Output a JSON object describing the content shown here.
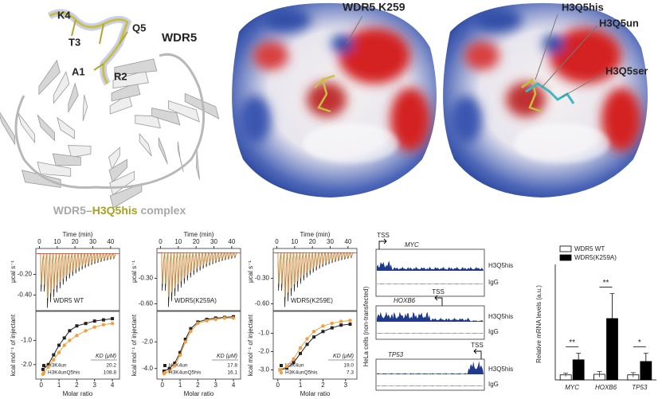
{
  "figure": {
    "structure": {
      "residues": [
        "K4",
        "Q5",
        "T3",
        "A1",
        "R2"
      ],
      "protein": "WDR5",
      "caption": [
        "WDR5–",
        "H3Q5his",
        " complex"
      ]
    },
    "surface_k259": {
      "label": "WDR5 K259"
    },
    "surface_overlay": {
      "labels": [
        "H3Q5his",
        "H3Q5un",
        "H3Q5ser"
      ]
    },
    "tracks": {
      "cell_label": "HeLa cells (non-transfected)",
      "loci": [
        {
          "gene": "MYC",
          "tss": "TSS",
          "rows": [
            "H3Q5his",
            "IgG"
          ]
        },
        {
          "gene": "HOXB6",
          "tss": "TSS",
          "rows": [
            "H3Q5his",
            "IgG"
          ]
        },
        {
          "gene": "TP53",
          "tss": "TSS",
          "rows": [
            "H3Q5his",
            "IgG"
          ]
        }
      ]
    }
  },
  "chart_data": [
    {
      "type": "itc",
      "title": "WDR5 WT",
      "time_label": "Time (min)",
      "time_lim": [
        -2,
        45
      ],
      "time_ticks": [
        0,
        10,
        20,
        30,
        40
      ],
      "raw_label": "μcal s⁻¹",
      "raw_lim": [
        -0.55,
        0.05
      ],
      "raw_ticks": [
        {
          "value": -0.2,
          "label": "-0.20"
        },
        {
          "value": -0.4,
          "label": "-0.40"
        }
      ],
      "xlabel": "Molar ratio",
      "xlim": [
        -0.3,
        4.4
      ],
      "xticks": [
        0,
        1,
        2,
        3,
        4
      ],
      "ylabel": "kcal mol⁻¹ of injectant",
      "ylim": [
        -2.6,
        0.2
      ],
      "yticks": [
        {
          "value": -1,
          "label": "-1.0"
        },
        {
          "value": -2,
          "label": "-2.0"
        }
      ],
      "legend_title": "KD (μM)",
      "series": [
        {
          "name": "H3K4un",
          "color": "#222222",
          "marker": "square",
          "kd": 20.2,
          "x": [
            0.1,
            0.4,
            0.7,
            1.0,
            1.3,
            1.6,
            2.0,
            2.5,
            3.0,
            3.5,
            4.0
          ],
          "values": [
            -2.2,
            -2.0,
            -1.6,
            -1.2,
            -0.9,
            -0.6,
            -0.4,
            -0.3,
            -0.2,
            -0.15,
            -0.1
          ]
        },
        {
          "name": "H3K4unQ5his",
          "color": "#f0a040",
          "marker": "circle",
          "kd": 108.8,
          "x": [
            0.1,
            0.4,
            0.7,
            1.0,
            1.3,
            1.6,
            2.0,
            2.5,
            3.0,
            3.5,
            4.0
          ],
          "values": [
            -2.4,
            -2.1,
            -1.8,
            -1.5,
            -1.2,
            -1.0,
            -0.8,
            -0.6,
            -0.45,
            -0.35,
            -0.3
          ]
        }
      ]
    },
    {
      "type": "itc",
      "title": "WDR5(K259A)",
      "time_label": "Time (min)",
      "time_lim": [
        -2,
        45
      ],
      "time_ticks": [
        0,
        10,
        20,
        30,
        40
      ],
      "raw_label": "μcal s⁻¹",
      "raw_lim": [
        -0.68,
        0.05
      ],
      "raw_ticks": [
        {
          "value": -0.3,
          "label": "-0.30"
        },
        {
          "value": -0.6,
          "label": "-0.60"
        }
      ],
      "xlabel": "Molar ratio",
      "xlim": [
        -0.3,
        4.4
      ],
      "xticks": [
        0,
        1,
        2,
        3,
        4
      ],
      "ylabel": "kcal mol⁻¹ of injectant",
      "ylim": [
        -4.8,
        0.3
      ],
      "yticks": [
        {
          "value": -2,
          "label": "-2.0"
        },
        {
          "value": -4,
          "label": "-4.0"
        }
      ],
      "legend_title": "KD (μM)",
      "series": [
        {
          "name": "H3K4un",
          "color": "#222222",
          "marker": "square",
          "kd": 17.8,
          "x": [
            0.1,
            0.4,
            0.7,
            1.0,
            1.3,
            1.6,
            2.0,
            2.5,
            3.0,
            3.5,
            4.0
          ],
          "values": [
            -4.2,
            -4.0,
            -3.6,
            -2.8,
            -1.8,
            -1.0,
            -0.5,
            -0.3,
            -0.2,
            -0.15,
            -0.1
          ]
        },
        {
          "name": "H3K4unQ5his",
          "color": "#f0a040",
          "marker": "circle",
          "kd": 16.1,
          "x": [
            0.1,
            0.4,
            0.7,
            1.0,
            1.3,
            1.6,
            2.0,
            2.5,
            3.0,
            3.5,
            4.0
          ],
          "values": [
            -4.4,
            -4.2,
            -3.8,
            -3.0,
            -2.0,
            -1.2,
            -0.6,
            -0.4,
            -0.3,
            -0.2,
            -0.2
          ]
        }
      ]
    },
    {
      "type": "itc",
      "title": "WDR5(K259E)",
      "time_label": "Time (min)",
      "time_lim": [
        -2,
        45
      ],
      "time_ticks": [
        0,
        10,
        20,
        30,
        40
      ],
      "raw_label": "μcal s⁻¹",
      "raw_lim": [
        -0.68,
        0.05
      ],
      "raw_ticks": [
        {
          "value": -0.3,
          "label": "-0.30"
        },
        {
          "value": -0.6,
          "label": "-0.60"
        }
      ],
      "xlabel": "Molar ratio",
      "xlim": [
        -0.2,
        3.5
      ],
      "xticks": [
        0,
        1,
        2,
        3
      ],
      "ylabel": "kcal mol⁻¹ of injectant",
      "ylim": [
        -3.5,
        0.2
      ],
      "yticks": [
        {
          "value": -1,
          "label": "-1.0"
        },
        {
          "value": -2,
          "label": "-2.0"
        },
        {
          "value": -3,
          "label": "-3.0"
        }
      ],
      "legend_title": "KD (μM)",
      "series": [
        {
          "name": "H3K4un",
          "color": "#222222",
          "marker": "square",
          "kd": {
            "value": 19,
            "label": "19.0"
          },
          "x": [
            0.1,
            0.4,
            0.7,
            1.0,
            1.3,
            1.6,
            2.0,
            2.4,
            2.8,
            3.2
          ],
          "values": [
            -3.0,
            -2.9,
            -2.6,
            -2.1,
            -1.6,
            -1.2,
            -0.9,
            -0.7,
            -0.55,
            -0.5
          ]
        },
        {
          "name": "H3K4unQ5his",
          "color": "#f0a040",
          "marker": "circle",
          "kd": 7.3,
          "x": [
            0.1,
            0.4,
            0.7,
            1.0,
            1.3,
            1.6,
            2.0,
            2.4,
            2.8,
            3.2
          ],
          "values": [
            -3.0,
            -2.8,
            -2.4,
            -1.8,
            -1.3,
            -0.9,
            -0.6,
            -0.45,
            -0.35,
            -0.3
          ]
        }
      ]
    },
    {
      "type": "bar",
      "ylabel": "Relative mRNA levels (a.u.)",
      "categories": [
        "MYC",
        "HOXB6",
        "TP53"
      ],
      "ylim": [
        0,
        20
      ],
      "series": [
        {
          "name": "WDR5 WT",
          "color": "#ffffff",
          "values": [
            0.9,
            1.0,
            0.9
          ],
          "errors": [
            0.3,
            0.5,
            0.4
          ]
        },
        {
          "name": "WDR5(K259A)",
          "color": "#000000",
          "values": [
            3.6,
            11,
            3.3
          ],
          "errors": [
            1.2,
            4.5,
            1.5
          ]
        }
      ],
      "significance": [
        "**",
        "**",
        "*"
      ]
    }
  ]
}
